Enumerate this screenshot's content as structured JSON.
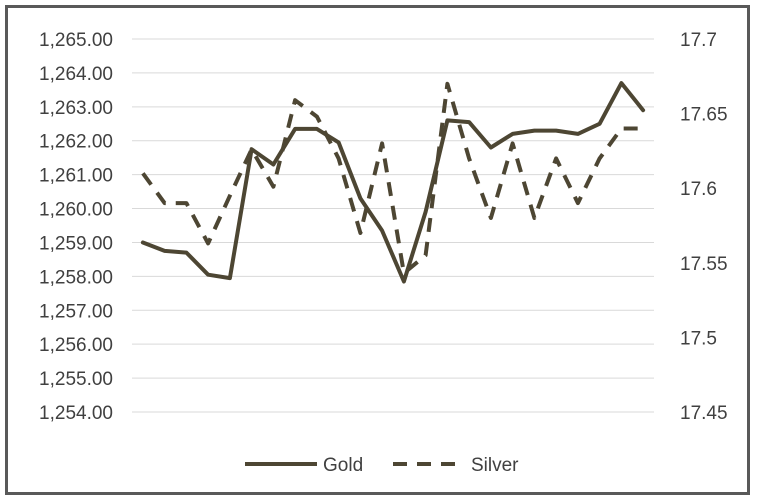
{
  "chart_data": {
    "type": "line",
    "title": "",
    "xlabel": "",
    "ylabel": "",
    "grid": true,
    "legend": "bottom",
    "y_left": {
      "min": 1254,
      "max": 1265,
      "ticks": [
        "1,254.00",
        "1,255.00",
        "1,256.00",
        "1,257.00",
        "1,258.00",
        "1,259.00",
        "1,260.00",
        "1,261.00",
        "1,262.00",
        "1,263.00",
        "1,264.00",
        "1,265.00"
      ]
    },
    "y_right": {
      "min": 17.45,
      "max": 17.7,
      "ticks": [
        "17.45",
        "17.5",
        "17.55",
        "17.6",
        "17.65",
        "17.7"
      ]
    },
    "series": [
      {
        "name": "Gold",
        "axis": "left",
        "style": "solid",
        "color": "#4d4633",
        "values": [
          1259.0,
          1258.75,
          1258.7,
          1258.05,
          1257.95,
          1261.75,
          1261.3,
          1262.35,
          1262.35,
          1261.95,
          1260.3,
          1259.35,
          1257.85,
          1259.9,
          1262.6,
          1262.55,
          1261.8,
          1262.2,
          1262.3,
          1262.3,
          1262.2,
          1262.5,
          1263.7,
          1262.9
        ]
      },
      {
        "name": "Silver",
        "axis": "right",
        "style": "dashed",
        "color": "#4d4633",
        "values": [
          17.61,
          17.59,
          17.59,
          17.563,
          17.595,
          17.626,
          17.601,
          17.659,
          17.648,
          17.62,
          17.57,
          17.63,
          17.543,
          17.555,
          17.67,
          17.62,
          17.58,
          17.63,
          17.58,
          17.62,
          17.59,
          17.62,
          17.64,
          17.64
        ]
      }
    ]
  }
}
